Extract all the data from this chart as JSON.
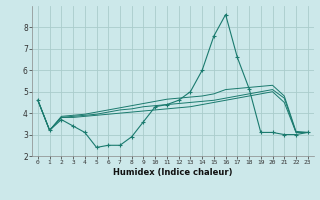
{
  "xlabel": "Humidex (Indice chaleur)",
  "bg_color": "#cce8ea",
  "grid_color": "#aacccc",
  "line_color": "#1a7a6e",
  "xlim": [
    -0.5,
    23.5
  ],
  "ylim": [
    2.0,
    9.0
  ],
  "xticks": [
    0,
    1,
    2,
    3,
    4,
    5,
    6,
    7,
    8,
    9,
    10,
    11,
    12,
    13,
    14,
    15,
    16,
    17,
    18,
    19,
    20,
    21,
    22,
    23
  ],
  "yticks": [
    2,
    3,
    4,
    5,
    6,
    7,
    8
  ],
  "series": {
    "main": [
      4.6,
      3.2,
      3.7,
      3.4,
      3.1,
      2.4,
      2.5,
      2.5,
      2.9,
      3.6,
      4.3,
      4.4,
      4.6,
      5.0,
      6.0,
      7.6,
      8.6,
      6.6,
      5.15,
      3.1,
      3.1,
      3.0,
      3.0,
      3.1
    ],
    "trend1": [
      4.6,
      3.2,
      3.8,
      3.8,
      3.85,
      3.9,
      3.95,
      4.0,
      4.05,
      4.1,
      4.15,
      4.2,
      4.25,
      4.3,
      4.4,
      4.5,
      4.6,
      4.7,
      4.8,
      4.9,
      5.0,
      4.5,
      3.1,
      3.1
    ],
    "trend2": [
      4.6,
      3.2,
      3.8,
      3.85,
      3.9,
      3.95,
      4.05,
      4.15,
      4.2,
      4.3,
      4.35,
      4.4,
      4.45,
      4.5,
      4.55,
      4.6,
      4.7,
      4.8,
      4.9,
      5.0,
      5.1,
      4.7,
      3.1,
      3.1
    ],
    "trend3": [
      4.6,
      3.2,
      3.85,
      3.9,
      3.95,
      4.05,
      4.15,
      4.25,
      4.35,
      4.45,
      4.55,
      4.65,
      4.7,
      4.75,
      4.8,
      4.9,
      5.1,
      5.15,
      5.2,
      5.25,
      5.3,
      4.8,
      3.15,
      3.1
    ]
  }
}
